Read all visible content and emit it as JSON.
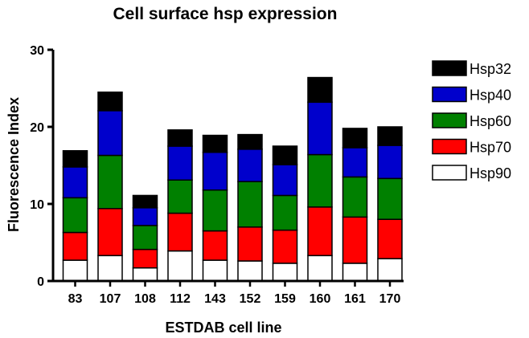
{
  "chart_data": {
    "type": "bar",
    "stacked": true,
    "title": "Cell surface hsp expression",
    "xlabel": "ESTDAB cell line",
    "ylabel": "Fluorescence  Index",
    "ylim": [
      0,
      30
    ],
    "yticks": [
      0,
      10,
      20,
      30
    ],
    "grid": false,
    "legend_position": "right",
    "categories": [
      "83",
      "107",
      "108",
      "112",
      "143",
      "152",
      "159",
      "160",
      "161",
      "170"
    ],
    "series": [
      {
        "name": "Hsp90",
        "color": "#ffffff",
        "values": [
          2.7,
          3.3,
          1.7,
          3.9,
          2.7,
          2.6,
          2.3,
          3.3,
          2.3,
          2.9
        ]
      },
      {
        "name": "Hsp70",
        "color": "#ff0000",
        "values": [
          3.6,
          6.1,
          2.4,
          4.9,
          3.8,
          4.4,
          4.3,
          6.3,
          6.0,
          5.1
        ]
      },
      {
        "name": "Hsp60",
        "color": "#008000",
        "values": [
          4.5,
          6.9,
          3.1,
          4.3,
          5.3,
          5.9,
          4.5,
          6.8,
          5.2,
          5.3
        ]
      },
      {
        "name": "Hsp40",
        "color": "#0000cc",
        "values": [
          4.0,
          5.8,
          2.3,
          4.4,
          4.9,
          4.2,
          4.0,
          6.8,
          3.8,
          4.3
        ]
      },
      {
        "name": "Hsp32",
        "color": "#000000",
        "values": [
          2.1,
          2.4,
          1.6,
          2.1,
          2.2,
          1.9,
          2.4,
          3.2,
          2.5,
          2.4
        ]
      }
    ],
    "legend_order": [
      "Hsp32",
      "Hsp40",
      "Hsp60",
      "Hsp70",
      "Hsp90"
    ]
  }
}
